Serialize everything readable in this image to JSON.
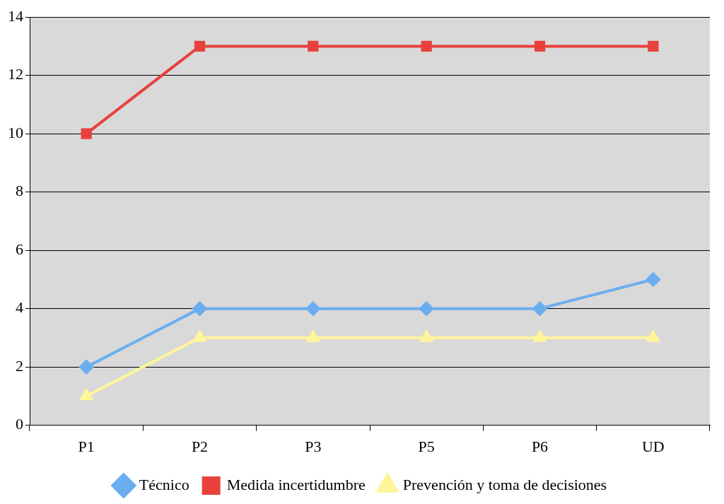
{
  "chart_data": {
    "type": "line",
    "categories": [
      "P1",
      "P2",
      "P3",
      "P5",
      "P6",
      "UD"
    ],
    "series": [
      {
        "name": "Técnico",
        "color": "#6aaef0",
        "values": [
          2,
          4,
          4,
          4,
          4,
          5
        ],
        "marker": "diamond"
      },
      {
        "name": "Medida incertidumbre",
        "color": "#e8413c",
        "values": [
          10,
          13,
          13,
          13,
          13,
          13
        ],
        "marker": "square"
      },
      {
        "name": "Prevención y toma de decisiones",
        "color": "#fff59a",
        "values": [
          1,
          3,
          3,
          3,
          3,
          3
        ],
        "marker": "triangle"
      }
    ],
    "ylim": [
      0,
      14
    ],
    "yticks": [
      0,
      2,
      4,
      6,
      8,
      10,
      12,
      14
    ],
    "grid": "y",
    "legend": "bottom"
  }
}
